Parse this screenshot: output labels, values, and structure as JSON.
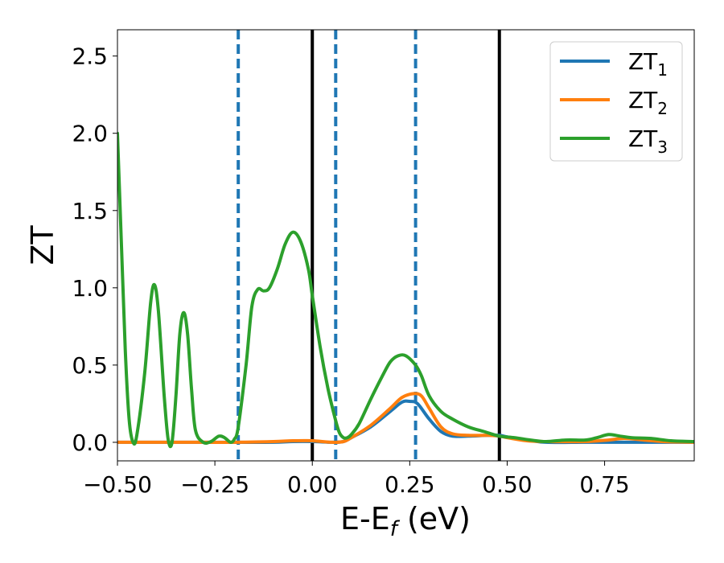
{
  "chart_data": {
    "type": "line",
    "xlabel": "E-E",
    "xlabel_sub": "f",
    "xlabel_suffix": " (eV)",
    "ylabel": "ZT",
    "xlim": [
      -0.5,
      0.98
    ],
    "ylim": [
      -0.12,
      2.67
    ],
    "xticks": [
      -0.5,
      -0.25,
      0.0,
      0.25,
      0.5,
      0.75
    ],
    "xtick_labels": [
      "−0.50",
      "−0.25",
      "0.00",
      "0.25",
      "0.50",
      "0.75"
    ],
    "yticks": [
      0.0,
      0.5,
      1.0,
      1.5,
      2.0,
      2.5
    ],
    "ytick_labels": [
      "0.0",
      "0.5",
      "1.0",
      "1.5",
      "2.0",
      "2.5"
    ],
    "grid": false,
    "legend_position": "top-right",
    "vlines_solid": [
      0.0,
      0.48
    ],
    "vlines_dashed": [
      -0.19,
      0.06,
      0.265
    ],
    "vline_solid_color": "#000000",
    "vline_dashed_color": "#1f77b4",
    "series": [
      {
        "name": "ZT",
        "name_sub": "1",
        "color": "#1f77b4",
        "points": [
          [
            -0.5,
            0.0
          ],
          [
            -0.3,
            0.0
          ],
          [
            -0.2,
            0.0
          ],
          [
            -0.1,
            0.0
          ],
          [
            -0.05,
            0.005
          ],
          [
            0.0,
            0.005
          ],
          [
            0.05,
            0.0
          ],
          [
            0.08,
            0.005
          ],
          [
            0.1,
            0.03
          ],
          [
            0.15,
            0.1
          ],
          [
            0.2,
            0.2
          ],
          [
            0.23,
            0.26
          ],
          [
            0.25,
            0.265
          ],
          [
            0.27,
            0.25
          ],
          [
            0.3,
            0.15
          ],
          [
            0.33,
            0.07
          ],
          [
            0.36,
            0.04
          ],
          [
            0.4,
            0.04
          ],
          [
            0.45,
            0.045
          ],
          [
            0.48,
            0.045
          ],
          [
            0.5,
            0.035
          ],
          [
            0.55,
            0.015
          ],
          [
            0.6,
            0.0
          ],
          [
            0.7,
            0.0
          ],
          [
            0.8,
            0.0
          ],
          [
            0.9,
            0.0
          ],
          [
            0.98,
            0.0
          ]
        ]
      },
      {
        "name": "ZT",
        "name_sub": "2",
        "color": "#ff7f0e",
        "points": [
          [
            -0.5,
            0.0
          ],
          [
            -0.3,
            0.0
          ],
          [
            -0.2,
            0.0
          ],
          [
            -0.1,
            0.005
          ],
          [
            -0.05,
            0.01
          ],
          [
            0.0,
            0.01
          ],
          [
            0.05,
            0.0
          ],
          [
            0.08,
            0.005
          ],
          [
            0.1,
            0.03
          ],
          [
            0.15,
            0.11
          ],
          [
            0.2,
            0.22
          ],
          [
            0.23,
            0.29
          ],
          [
            0.26,
            0.315
          ],
          [
            0.28,
            0.3
          ],
          [
            0.3,
            0.22
          ],
          [
            0.33,
            0.1
          ],
          [
            0.36,
            0.055
          ],
          [
            0.4,
            0.045
          ],
          [
            0.45,
            0.045
          ],
          [
            0.48,
            0.04
          ],
          [
            0.5,
            0.03
          ],
          [
            0.55,
            0.01
          ],
          [
            0.6,
            0.005
          ],
          [
            0.7,
            0.005
          ],
          [
            0.76,
            0.015
          ],
          [
            0.8,
            0.025
          ],
          [
            0.85,
            0.015
          ],
          [
            0.9,
            0.005
          ],
          [
            0.98,
            0.0
          ]
        ]
      },
      {
        "name": "ZT",
        "name_sub": "3",
        "color": "#2ca02c",
        "points": [
          [
            -0.5,
            2.0
          ],
          [
            -0.49,
            1.3
          ],
          [
            -0.48,
            0.6
          ],
          [
            -0.47,
            0.15
          ],
          [
            -0.46,
            0.0
          ],
          [
            -0.45,
            0.05
          ],
          [
            -0.43,
            0.45
          ],
          [
            -0.415,
            0.9
          ],
          [
            -0.405,
            1.02
          ],
          [
            -0.395,
            0.85
          ],
          [
            -0.38,
            0.3
          ],
          [
            -0.37,
            0.02
          ],
          [
            -0.36,
            0.0
          ],
          [
            -0.35,
            0.3
          ],
          [
            -0.34,
            0.7
          ],
          [
            -0.33,
            0.84
          ],
          [
            -0.32,
            0.7
          ],
          [
            -0.31,
            0.35
          ],
          [
            -0.3,
            0.08
          ],
          [
            -0.28,
            0.0
          ],
          [
            -0.26,
            0.005
          ],
          [
            -0.24,
            0.04
          ],
          [
            -0.225,
            0.03
          ],
          [
            -0.21,
            0.0
          ],
          [
            -0.2,
            0.02
          ],
          [
            -0.19,
            0.1
          ],
          [
            -0.17,
            0.5
          ],
          [
            -0.155,
            0.88
          ],
          [
            -0.14,
            0.99
          ],
          [
            -0.125,
            0.98
          ],
          [
            -0.11,
            1.0
          ],
          [
            -0.09,
            1.12
          ],
          [
            -0.07,
            1.28
          ],
          [
            -0.05,
            1.36
          ],
          [
            -0.03,
            1.3
          ],
          [
            -0.01,
            1.12
          ],
          [
            0.0,
            0.95
          ],
          [
            0.02,
            0.62
          ],
          [
            0.04,
            0.35
          ],
          [
            0.06,
            0.14
          ],
          [
            0.07,
            0.06
          ],
          [
            0.08,
            0.03
          ],
          [
            0.09,
            0.03
          ],
          [
            0.1,
            0.05
          ],
          [
            0.12,
            0.12
          ],
          [
            0.15,
            0.28
          ],
          [
            0.18,
            0.43
          ],
          [
            0.2,
            0.52
          ],
          [
            0.22,
            0.56
          ],
          [
            0.24,
            0.56
          ],
          [
            0.265,
            0.5
          ],
          [
            0.28,
            0.43
          ],
          [
            0.3,
            0.3
          ],
          [
            0.33,
            0.2
          ],
          [
            0.36,
            0.15
          ],
          [
            0.4,
            0.1
          ],
          [
            0.44,
            0.07
          ],
          [
            0.48,
            0.04
          ],
          [
            0.52,
            0.03
          ],
          [
            0.56,
            0.015
          ],
          [
            0.6,
            0.005
          ],
          [
            0.65,
            0.015
          ],
          [
            0.7,
            0.015
          ],
          [
            0.73,
            0.03
          ],
          [
            0.76,
            0.05
          ],
          [
            0.79,
            0.04
          ],
          [
            0.82,
            0.03
          ],
          [
            0.87,
            0.025
          ],
          [
            0.92,
            0.01
          ],
          [
            0.98,
            0.005
          ]
        ]
      }
    ]
  }
}
